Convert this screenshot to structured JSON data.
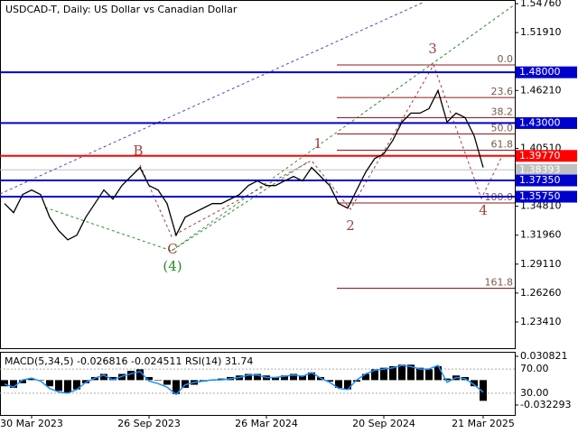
{
  "chart_data": [
    {
      "type": "line",
      "title": "USDCAD-T, Daily:  US Dollar vs Canadian Dollar",
      "categories": [
        null,
        null,
        null,
        "30 Mar 2023",
        null,
        null,
        null,
        null,
        null,
        null,
        null,
        null,
        null,
        null,
        null,
        null,
        "26 Sep 2023",
        null,
        null,
        null,
        null,
        null,
        null,
        null,
        null,
        null,
        null,
        null,
        null,
        "26 Mar 2024",
        null,
        null,
        null,
        null,
        null,
        null,
        null,
        null,
        null,
        null,
        null,
        null,
        "20 Sep 2024",
        null,
        null,
        null,
        null,
        null,
        null,
        null,
        null,
        null,
        null,
        "21 Mar 2025"
      ],
      "values": [
        1.3507,
        1.3418,
        1.3596,
        1.3641,
        1.3596,
        1.3373,
        1.324,
        1.315,
        1.3195,
        1.3373,
        1.3507,
        1.3641,
        1.3551,
        1.3685,
        1.3774,
        1.3863,
        1.3685,
        1.3641,
        1.3507,
        1.3195,
        1.3373,
        1.3418,
        1.3462,
        1.3507,
        1.3507,
        1.3551,
        1.3596,
        1.3685,
        1.373,
        1.3685,
        1.3685,
        1.373,
        1.3774,
        1.373,
        1.3863,
        1.3774,
        1.3685,
        1.3507,
        1.3462,
        1.3641,
        1.3819,
        1.3952,
        1.3997,
        1.4131,
        1.4309,
        1.4398,
        1.4398,
        1.4442,
        1.4621,
        1.4309,
        1.4398,
        1.4354,
        1.4175,
        1.3863
      ],
      "color": "#000000",
      "ylim": [
        1.2083,
        1.5512
      ],
      "yticks": [
        {
          "value": 1.5476,
          "label": "1.54760"
        },
        {
          "value": 1.5191,
          "label": "1.51910"
        },
        {
          "value": 1.4621,
          "label": "1.46210"
        },
        {
          "value": 1.4051,
          "label": "1.40510"
        },
        {
          "value": 1.3481,
          "label": "1.34810"
        },
        {
          "value": 1.3196,
          "label": "1.31960"
        },
        {
          "value": 1.2911,
          "label": "1.29110"
        },
        {
          "value": 1.2626,
          "label": "1.26260"
        },
        {
          "value": 1.2341,
          "label": "1.23410"
        }
      ],
      "levels": [
        {
          "value": 1.48,
          "label": "1.48000",
          "color": "#0000cd"
        },
        {
          "value": 1.43,
          "label": "1.43000",
          "color": "#0000cd"
        },
        {
          "value": 1.3977,
          "label": "1.39770",
          "color": "#ff0000"
        },
        {
          "value": 1.38393,
          "label": "1.38393",
          "color": "#c0c0c0"
        },
        {
          "value": 1.3735,
          "label": "1.37350",
          "color": "#0000cd"
        },
        {
          "value": 1.3575,
          "label": "1.35750",
          "color": "#0000cd"
        }
      ],
      "fibo": [
        {
          "value": 0,
          "label": "0.0"
        },
        23.6,
        38.2,
        {
          "value": 50,
          "label": "50.0"
        },
        61.8,
        {
          "value": 100,
          "label": "100.0"
        },
        161.8
      ],
      "waves": [
        "1",
        "2",
        "3",
        "4",
        "B",
        "C",
        "(4)"
      ]
    },
    {
      "type": "macd",
      "title": "MACD(5,34,5) -0.026816 -0.024511 RSI(14) 31.74",
      "values": [
        -0.008,
        -0.01,
        -0.004,
        0.002,
        0.0,
        -0.008,
        -0.014,
        -0.016,
        -0.012,
        -0.004,
        0.004,
        0.008,
        0.004,
        0.008,
        0.012,
        0.014,
        0.004,
        0.0,
        -0.006,
        -0.018,
        -0.01,
        -0.006,
        -0.002,
        0.0,
        0.002,
        0.004,
        0.006,
        0.008,
        0.008,
        0.006,
        0.004,
        0.006,
        0.008,
        0.006,
        0.01,
        0.004,
        -0.002,
        -0.01,
        -0.012,
        -0.002,
        0.008,
        0.014,
        0.016,
        0.018,
        0.02,
        0.02,
        0.016,
        0.014,
        0.018,
        0.002,
        0.006,
        0.004,
        -0.008,
        -0.026816
      ],
      "rsi": [
        45,
        40,
        52,
        55,
        50,
        38,
        32,
        30,
        36,
        48,
        55,
        60,
        52,
        58,
        62,
        66,
        50,
        46,
        40,
        28,
        44,
        48,
        50,
        52,
        52,
        54,
        56,
        60,
        60,
        56,
        56,
        58,
        60,
        58,
        64,
        55,
        48,
        38,
        36,
        52,
        62,
        68,
        70,
        72,
        76,
        74,
        70,
        70,
        76,
        48,
        56,
        54,
        44,
        31.74
      ],
      "color": "#000000",
      "rsi_color": "#1e90ff",
      "ylim": [
        -0.032293,
        0.030821
      ],
      "yticks": [
        0.030821,
        -0.032293
      ],
      "rsi_lim": [
        0,
        100
      ],
      "rsi_ticks": [
        {
          "value": 70,
          "label": "70.00"
        },
        {
          "value": 30,
          "label": "30.00"
        }
      ]
    }
  ]
}
